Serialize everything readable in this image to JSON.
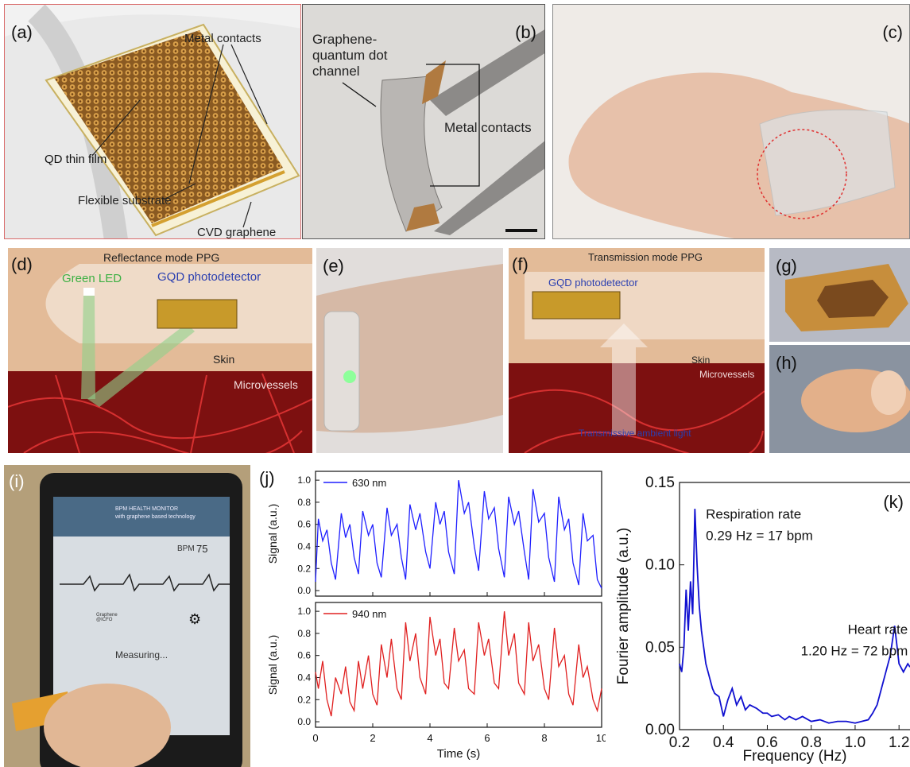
{
  "panels": {
    "a": {
      "label": "(a)",
      "metal_contacts": "Metal contacts",
      "qd_film": "QD thin film",
      "substrate": "Flexible substrate",
      "graphene": "CVD graphene"
    },
    "b": {
      "label": "(b)",
      "channel": "Graphene-\nquantum dot\nchannel",
      "metal_contacts": "Metal contacts"
    },
    "c": {
      "label": "(c)"
    },
    "d": {
      "label": "(d)",
      "title": "Reflectance mode PPG",
      "led": "Green LED",
      "detector": "GQD photodetector",
      "skin": "Skin",
      "vessels": "Microvessels"
    },
    "e": {
      "label": "(e)"
    },
    "f": {
      "label": "(f)",
      "title": "Transmission mode PPG",
      "detector": "GQD photodetector",
      "skin": "Skin",
      "vessels": "Microvessels",
      "light": "Transmissive ambient light"
    },
    "g": {
      "label": "(g)"
    },
    "h": {
      "label": "(h)"
    },
    "i": {
      "label": "(i)",
      "app_title": "BPM HEALTH MONITOR",
      "app_subtitle": "with graphene based technology",
      "bpm_label": "BPM",
      "bpm_value": "75",
      "status": "Measuring...",
      "logo_text": "Graphene\n@ICFO"
    }
  },
  "chart_data": [
    {
      "type": "line",
      "panel": "(j)",
      "subplot": "top",
      "series": [
        {
          "name": "630 nm",
          "color": "#1f1fff"
        }
      ],
      "ylabel": "Signal (a.u.)",
      "ylim": [
        -0.05,
        1.08
      ],
      "yticks": [
        "0.0",
        "0.2",
        "0.4",
        "0.6",
        "0.8",
        "1.0"
      ],
      "xlim": [
        0,
        10
      ],
      "x": [
        0,
        0.1,
        0.25,
        0.4,
        0.55,
        0.7,
        0.9,
        1.05,
        1.2,
        1.35,
        1.5,
        1.65,
        1.85,
        2.0,
        2.15,
        2.3,
        2.5,
        2.65,
        2.85,
        3.0,
        3.15,
        3.3,
        3.5,
        3.65,
        3.85,
        4.0,
        4.2,
        4.35,
        4.5,
        4.65,
        4.85,
        5.0,
        5.2,
        5.35,
        5.55,
        5.7,
        5.9,
        6.05,
        6.25,
        6.4,
        6.6,
        6.75,
        6.95,
        7.1,
        7.3,
        7.45,
        7.6,
        7.8,
        8.0,
        8.15,
        8.35,
        8.5,
        8.7,
        8.85,
        9.0,
        9.2,
        9.35,
        9.5,
        9.7,
        9.85,
        10.0
      ],
      "y": [
        0.08,
        0.65,
        0.45,
        0.55,
        0.25,
        0.1,
        0.7,
        0.48,
        0.6,
        0.3,
        0.15,
        0.72,
        0.5,
        0.6,
        0.25,
        0.12,
        0.75,
        0.5,
        0.6,
        0.3,
        0.1,
        0.78,
        0.55,
        0.7,
        0.35,
        0.2,
        0.8,
        0.6,
        0.72,
        0.35,
        0.15,
        1.0,
        0.7,
        0.8,
        0.4,
        0.18,
        0.9,
        0.65,
        0.75,
        0.38,
        0.12,
        0.85,
        0.6,
        0.72,
        0.35,
        0.1,
        0.92,
        0.62,
        0.7,
        0.3,
        0.08,
        0.85,
        0.55,
        0.65,
        0.25,
        0.05,
        0.7,
        0.45,
        0.5,
        0.1,
        0.02
      ]
    },
    {
      "type": "line",
      "panel": "(j)",
      "subplot": "bottom",
      "series": [
        {
          "name": "940 nm",
          "color": "#e02020"
        }
      ],
      "xlabel": "Time (s)",
      "ylabel": "Signal (a.u.)",
      "ylim": [
        -0.05,
        1.08
      ],
      "yticks": [
        "0.0",
        "0.2",
        "0.4",
        "0.6",
        "0.8",
        "1.0"
      ],
      "xlim": [
        0,
        10
      ],
      "xticks": [
        "0",
        "2",
        "4",
        "6",
        "8",
        "10"
      ],
      "x": [
        0,
        0.1,
        0.25,
        0.4,
        0.55,
        0.7,
        0.9,
        1.05,
        1.2,
        1.35,
        1.5,
        1.65,
        1.85,
        2.0,
        2.15,
        2.3,
        2.5,
        2.65,
        2.85,
        3.0,
        3.15,
        3.3,
        3.5,
        3.65,
        3.85,
        4.0,
        4.2,
        4.35,
        4.5,
        4.65,
        4.85,
        5.0,
        5.2,
        5.35,
        5.55,
        5.7,
        5.9,
        6.05,
        6.25,
        6.4,
        6.6,
        6.75,
        6.95,
        7.1,
        7.3,
        7.45,
        7.6,
        7.8,
        8.0,
        8.15,
        8.35,
        8.5,
        8.7,
        8.85,
        9.0,
        9.2,
        9.35,
        9.5,
        9.7,
        9.85,
        10.0
      ],
      "y": [
        0.45,
        0.3,
        0.55,
        0.2,
        0.05,
        0.4,
        0.25,
        0.5,
        0.18,
        0.1,
        0.55,
        0.3,
        0.6,
        0.25,
        0.15,
        0.7,
        0.4,
        0.75,
        0.3,
        0.2,
        0.9,
        0.55,
        0.8,
        0.4,
        0.25,
        0.95,
        0.6,
        0.75,
        0.35,
        0.3,
        0.85,
        0.55,
        0.65,
        0.3,
        0.25,
        0.9,
        0.6,
        0.75,
        0.35,
        0.3,
        1.0,
        0.6,
        0.8,
        0.35,
        0.25,
        0.9,
        0.55,
        0.7,
        0.3,
        0.2,
        0.85,
        0.5,
        0.6,
        0.25,
        0.15,
        0.7,
        0.4,
        0.5,
        0.2,
        0.1,
        0.3
      ]
    },
    {
      "type": "line",
      "panel": "(k)",
      "series": [
        {
          "name": "",
          "color": "#1010d0"
        }
      ],
      "xlabel": "Frequency (Hz)",
      "ylabel": "Fourier amplitude (a.u.)",
      "xlim": [
        0.2,
        1.25
      ],
      "ylim": [
        0.0,
        0.15
      ],
      "xticks": [
        "0.2",
        "0.4",
        "0.6",
        "0.8",
        "1.0",
        "1.2"
      ],
      "yticks": [
        "0.00",
        "0.05",
        "0.10",
        "0.15"
      ],
      "x": [
        0.2,
        0.21,
        0.22,
        0.23,
        0.24,
        0.25,
        0.26,
        0.27,
        0.28,
        0.29,
        0.3,
        0.31,
        0.32,
        0.33,
        0.34,
        0.35,
        0.36,
        0.38,
        0.4,
        0.42,
        0.44,
        0.46,
        0.48,
        0.5,
        0.52,
        0.55,
        0.58,
        0.6,
        0.62,
        0.65,
        0.68,
        0.7,
        0.73,
        0.76,
        0.8,
        0.84,
        0.88,
        0.92,
        0.96,
        1.0,
        1.03,
        1.06,
        1.08,
        1.1,
        1.12,
        1.14,
        1.16,
        1.18,
        1.2,
        1.22,
        1.24,
        1.25
      ],
      "y": [
        0.04,
        0.035,
        0.05,
        0.085,
        0.06,
        0.09,
        0.07,
        0.134,
        0.1,
        0.075,
        0.06,
        0.05,
        0.04,
        0.035,
        0.03,
        0.025,
        0.022,
        0.02,
        0.008,
        0.018,
        0.025,
        0.015,
        0.02,
        0.012,
        0.015,
        0.013,
        0.01,
        0.01,
        0.008,
        0.009,
        0.006,
        0.008,
        0.006,
        0.008,
        0.005,
        0.006,
        0.004,
        0.005,
        0.005,
        0.004,
        0.005,
        0.006,
        0.01,
        0.015,
        0.025,
        0.035,
        0.045,
        0.063,
        0.04,
        0.035,
        0.04,
        0.038
      ],
      "annotations": [
        {
          "text": "Respiration rate",
          "x": 0.32,
          "y": 0.128
        },
        {
          "text": "0.29 Hz = 17 bpm",
          "x": 0.32,
          "y": 0.115
        },
        {
          "text": "Heart rate",
          "x": 1.24,
          "y": 0.058
        },
        {
          "text": "1.20 Hz = 72 bpm",
          "x": 1.24,
          "y": 0.045
        }
      ]
    }
  ],
  "chart_labels": {
    "j": "(j)",
    "k": "(k)"
  }
}
